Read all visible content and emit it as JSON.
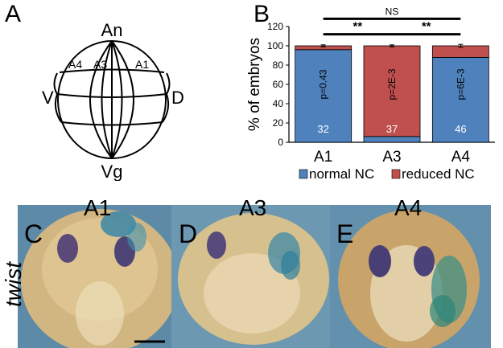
{
  "panels": {
    "a": "A",
    "b": "B",
    "c": "C",
    "d": "D",
    "e": "E"
  },
  "diagram": {
    "an": "An",
    "vg": "Vg",
    "v": "V",
    "d": "D",
    "a4": "A4",
    "a3": "A3",
    "a1": "A1"
  },
  "photos": {
    "gene": "twist",
    "labels": [
      "A1",
      "A3",
      "A4"
    ]
  },
  "colors": {
    "normal": "#4f81bd",
    "reduced": "#c0504d"
  },
  "chart_data": {
    "type": "bar",
    "stacked": true,
    "categories": [
      "A1",
      "A3",
      "A4"
    ],
    "series": [
      {
        "name": "normal NC",
        "values": [
          96,
          6,
          88
        ]
      },
      {
        "name": "reduced NC",
        "values": [
          4,
          94,
          12
        ]
      }
    ],
    "error": [
      1,
      1,
      1.5
    ],
    "ylabel": "% of embryos",
    "ylim": [
      0,
      120
    ],
    "yticks": [
      0,
      20,
      40,
      60,
      80,
      100,
      120
    ],
    "pvalues": [
      "p=0.43",
      "p=2E-3",
      "p=6E-3"
    ],
    "counts": [
      "32",
      "37",
      "46"
    ],
    "significance": [
      {
        "from": "A1",
        "to": "A3",
        "label": "**"
      },
      {
        "from": "A3",
        "to": "A4",
        "label": "**"
      },
      {
        "from": "A1",
        "to": "A4",
        "label": "NS"
      }
    ],
    "legend": "bottom"
  }
}
